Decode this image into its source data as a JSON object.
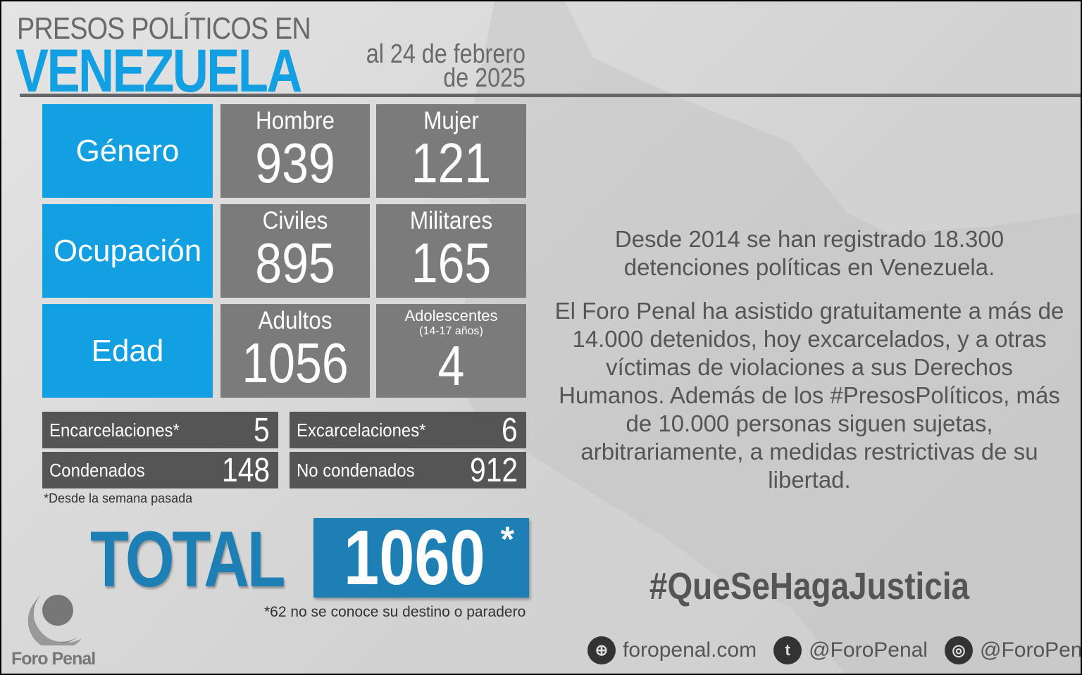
{
  "header": {
    "line1": "PRESOS POLÍTICOS EN",
    "line2": "VENEZUELA",
    "date_line1": "al 24 de febrero",
    "date_line2": "de 2025"
  },
  "colors": {
    "accent_blue": "#13a0e2",
    "total_blue": "#1e7fb5",
    "tile_gray": "#7b7b7b",
    "bar_dark": "#555555"
  },
  "stats": [
    {
      "category": "Género",
      "a_label": "Hombre",
      "a_value": "939",
      "b_label": "Mujer",
      "b_value": "121"
    },
    {
      "category": "Ocupación",
      "a_label": "Civiles",
      "a_value": "895",
      "b_label": "Militares",
      "b_value": "165"
    },
    {
      "category": "Edad",
      "a_label": "Adultos",
      "a_value": "1056",
      "b_label": "Adolescentes",
      "b_sub": "(14-17 años)",
      "b_value": "4"
    }
  ],
  "bars": [
    {
      "label": "Encarcelaciones*",
      "value": "5"
    },
    {
      "label": "Excarcelaciones*",
      "value": "6"
    },
    {
      "label": "Condenados",
      "value": "148"
    },
    {
      "label": "No condenados",
      "value": "912"
    }
  ],
  "bars_note": "*Desde la semana pasada",
  "total": {
    "label": "TOTAL",
    "value": "1060",
    "asterisk": "*",
    "note": "*62 no se conoce su destino o paradero"
  },
  "logo": {
    "text": "Foro Penal"
  },
  "right": {
    "p1": "Desde 2014 se han registrado 18.300 detenciones políticas en Venezuela.",
    "p2": "El Foro Penal ha asistido gratuitamente a más de 14.000 detenidos, hoy excarcelados, y a otras víctimas de violaciones a sus Derechos Humanos. Además de los #PresosPolíticos, más de 10.000 personas siguen sujetas, arbitrariamente, a medidas restrictivas de su libertad."
  },
  "hashtag": "#QueSeHagaJusticia",
  "social": [
    {
      "icon": "globe-icon",
      "label": "foropenal.com"
    },
    {
      "icon": "twitter-icon",
      "label": "@ForoPenal"
    },
    {
      "icon": "instagram-icon",
      "label": "@ForoPenal"
    }
  ]
}
